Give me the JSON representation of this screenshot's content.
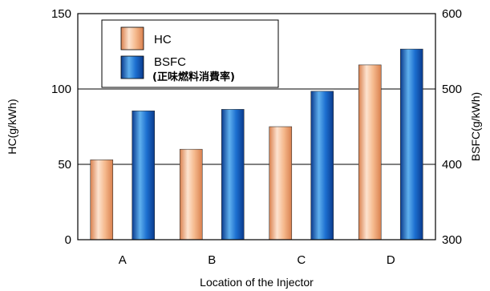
{
  "chart_data": {
    "type": "bar",
    "title": "",
    "categories": [
      "A",
      "B",
      "C",
      "D"
    ],
    "xlabel": "Location of the Injector",
    "ylabel_left": "HC(g/kWh)",
    "ylabel_right": "BSFC(g/kWh)",
    "ylim_left": [
      0,
      150
    ],
    "ylim_right": [
      300,
      600
    ],
    "yticks_left": [
      0,
      50,
      100,
      150
    ],
    "yticks_right": [
      300,
      400,
      500,
      600
    ],
    "grid": "horizontal",
    "legend_position": "top-left",
    "series": [
      {
        "name": "HC",
        "axis": "left",
        "values": [
          53,
          60,
          75,
          116
        ],
        "colors": {
          "light": "#fde3cf",
          "mid": "#f5b98d",
          "dark": "#d9804e"
        }
      },
      {
        "name": "BSFC",
        "name_sub": "(正味燃料消費率)",
        "axis": "right",
        "values": [
          471,
          473,
          497,
          553
        ],
        "colors": {
          "light": "#5fb0ee",
          "mid": "#1c6fd0",
          "dark": "#0a3a8c"
        }
      }
    ]
  }
}
